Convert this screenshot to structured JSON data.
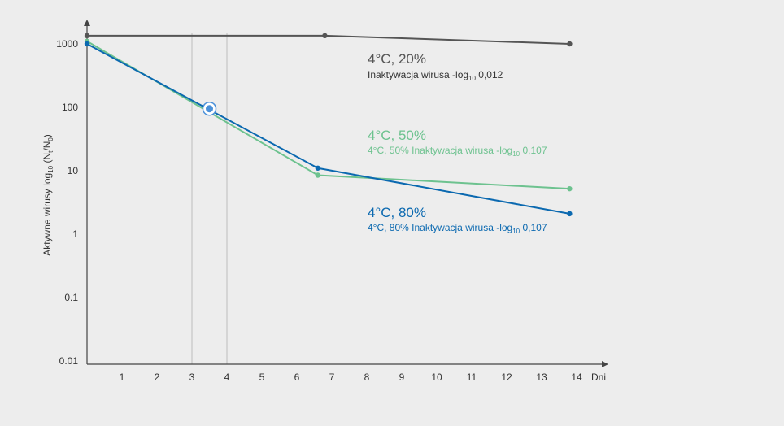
{
  "chart_data": {
    "type": "line",
    "ylabel": {
      "prefix": "Aktywne wirusy log",
      "sub": "10",
      "expr": " (N",
      "sub2": "t",
      "mid": "/N",
      "sub3": "0",
      "end": ")"
    },
    "xlabel": "Dni",
    "x_ticks": [
      1,
      2,
      3,
      4,
      5,
      6,
      7,
      8,
      9,
      10,
      11,
      12,
      13,
      14
    ],
    "xlim": [
      0,
      14.8
    ],
    "y_scale": "log",
    "y_ticks": [
      {
        "value": 0.01,
        "label": "0.01"
      },
      {
        "value": 0.1,
        "label": "0.1"
      },
      {
        "value": 1,
        "label": "1"
      },
      {
        "value": 10,
        "label": "10"
      },
      {
        "value": 100,
        "label": "100"
      },
      {
        "value": 1000,
        "label": "1000"
      }
    ],
    "ylim": [
      0.01,
      3000
    ],
    "vertical_gridlines": [
      3,
      4
    ],
    "marker": {
      "x": 3.5,
      "y": 95,
      "color": "#4a90d9"
    },
    "series": [
      {
        "key": "s20",
        "color": "#555555",
        "x": [
          0,
          6.8,
          13.8
        ],
        "y": [
          1350,
          1350,
          1000
        ]
      },
      {
        "key": "s50",
        "color": "#6dc28f",
        "x": [
          0,
          6.6,
          13.8
        ],
        "y": [
          1100,
          8.5,
          5.2
        ]
      },
      {
        "key": "s80",
        "color": "#0b69b0",
        "x": [
          0,
          6.6,
          13.8
        ],
        "y": [
          1000,
          11,
          2.1
        ]
      }
    ],
    "annotations": [
      {
        "key": "a20",
        "color": "#555555",
        "title": "4°C, 20%",
        "sub_pre": "Inaktywacja wirusa -log",
        "sub_sub": "10",
        "sub_post": " 0,012"
      },
      {
        "key": "a50",
        "color": "#6dc28f",
        "title": "4°C, 50%",
        "sub_pre": "4°C, 50% Inaktywacja wirusa -log",
        "sub_sub": "10",
        "sub_post": " 0,107"
      },
      {
        "key": "a80",
        "color": "#0b69b0",
        "title": "4°C, 80%",
        "sub_pre": "4°C, 80% Inaktywacja wirusa -log",
        "sub_sub": "10",
        "sub_post": " 0,107"
      }
    ]
  }
}
